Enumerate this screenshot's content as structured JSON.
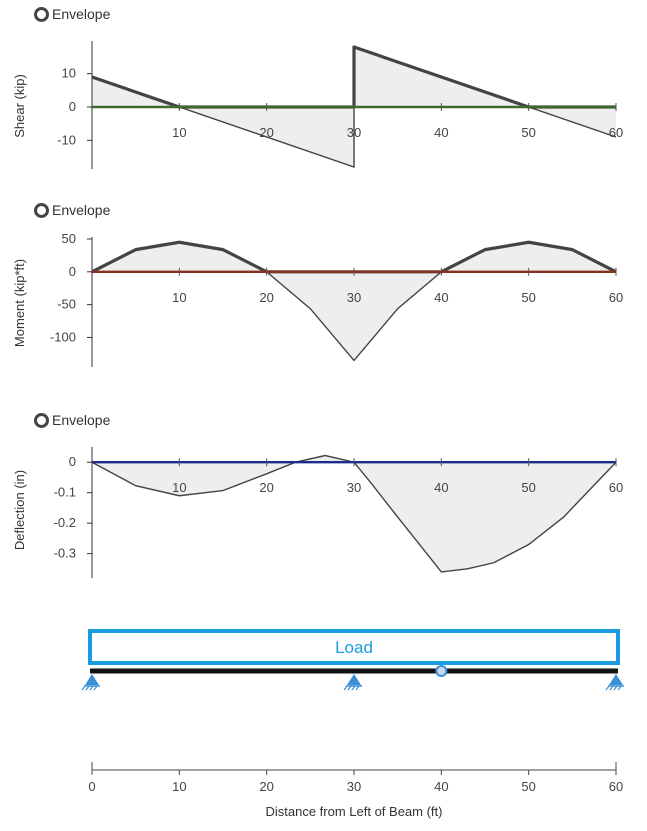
{
  "toggles": {
    "shear_label": "Envelope",
    "moment_label": "Envelope",
    "deflection_label": "Envelope"
  },
  "load_label": "Load",
  "colors": {
    "curve": "#444444",
    "fill": "#eeeeee",
    "shear_zero": "#3a6b2a",
    "moment_zero": "#8b2f1f",
    "deflection_zero": "#1f2b8a",
    "load": "#1a9be0",
    "support": "#3a8fd6",
    "beam": "#111111"
  },
  "chart_data": [
    {
      "type": "line",
      "name": "shear",
      "ylabel": "Shear (kip)",
      "xlim": [
        0,
        60
      ],
      "ylim": [
        -18.6,
        19.8
      ],
      "xticks": [
        10,
        20,
        30,
        40,
        50,
        60
      ],
      "yticks": [
        10,
        0,
        -10
      ],
      "x": [
        0,
        30,
        30,
        60
      ],
      "y": [
        9,
        -18,
        18,
        -9
      ],
      "envelope_x": [
        0,
        10,
        10,
        30,
        30,
        50,
        50,
        60
      ],
      "envelope_y": [
        9,
        0,
        0,
        0,
        18,
        0,
        0,
        0
      ]
    },
    {
      "type": "line",
      "name": "moment",
      "ylabel": "Moment (kip*ft)",
      "xlim": [
        0,
        60
      ],
      "ylim": [
        -145,
        53
      ],
      "xticks": [
        10,
        20,
        30,
        40,
        50,
        60
      ],
      "yticks": [
        50,
        0,
        -50,
        -100
      ],
      "x": [
        0,
        5,
        10,
        15,
        20,
        25,
        30,
        35,
        40,
        45,
        50,
        55,
        60
      ],
      "y": [
        0,
        33.75,
        45,
        33.75,
        0,
        -56.25,
        -135,
        -56.25,
        0,
        33.75,
        45,
        33.75,
        0
      ],
      "envelope_x": [
        0,
        5,
        10,
        15,
        20,
        40,
        45,
        50,
        55,
        60
      ],
      "envelope_y": [
        0,
        33.75,
        45,
        33.75,
        0,
        0,
        33.75,
        45,
        33.75,
        0
      ]
    },
    {
      "type": "line",
      "name": "deflection",
      "ylabel": "Deflection (in)",
      "xlim": [
        0,
        60
      ],
      "ylim": [
        -0.38,
        0.05
      ],
      "xticks": [
        10,
        20,
        30,
        40,
        50,
        60
      ],
      "yticks": [
        0,
        -0.1,
        -0.2,
        -0.3
      ],
      "x": [
        0,
        5,
        10,
        15,
        20,
        23.3,
        26.7,
        30,
        32,
        35,
        37.5,
        40,
        43,
        46,
        50,
        54,
        57,
        60
      ],
      "y": [
        0,
        -0.077,
        -0.11,
        -0.093,
        -0.038,
        0,
        0.022,
        0,
        -0.07,
        -0.18,
        -0.27,
        -0.36,
        -0.35,
        -0.33,
        -0.27,
        -0.18,
        -0.09,
        0
      ]
    },
    {
      "type": "line",
      "name": "beam",
      "xlabel": "Distance from Left of Beam (ft)",
      "xlim": [
        0,
        60
      ],
      "xticks": [
        0,
        10,
        20,
        30,
        40,
        50,
        60
      ],
      "supports_x": [
        0,
        30,
        60
      ],
      "hinge_x": [
        40
      ],
      "load_x": [
        0,
        60
      ]
    }
  ]
}
